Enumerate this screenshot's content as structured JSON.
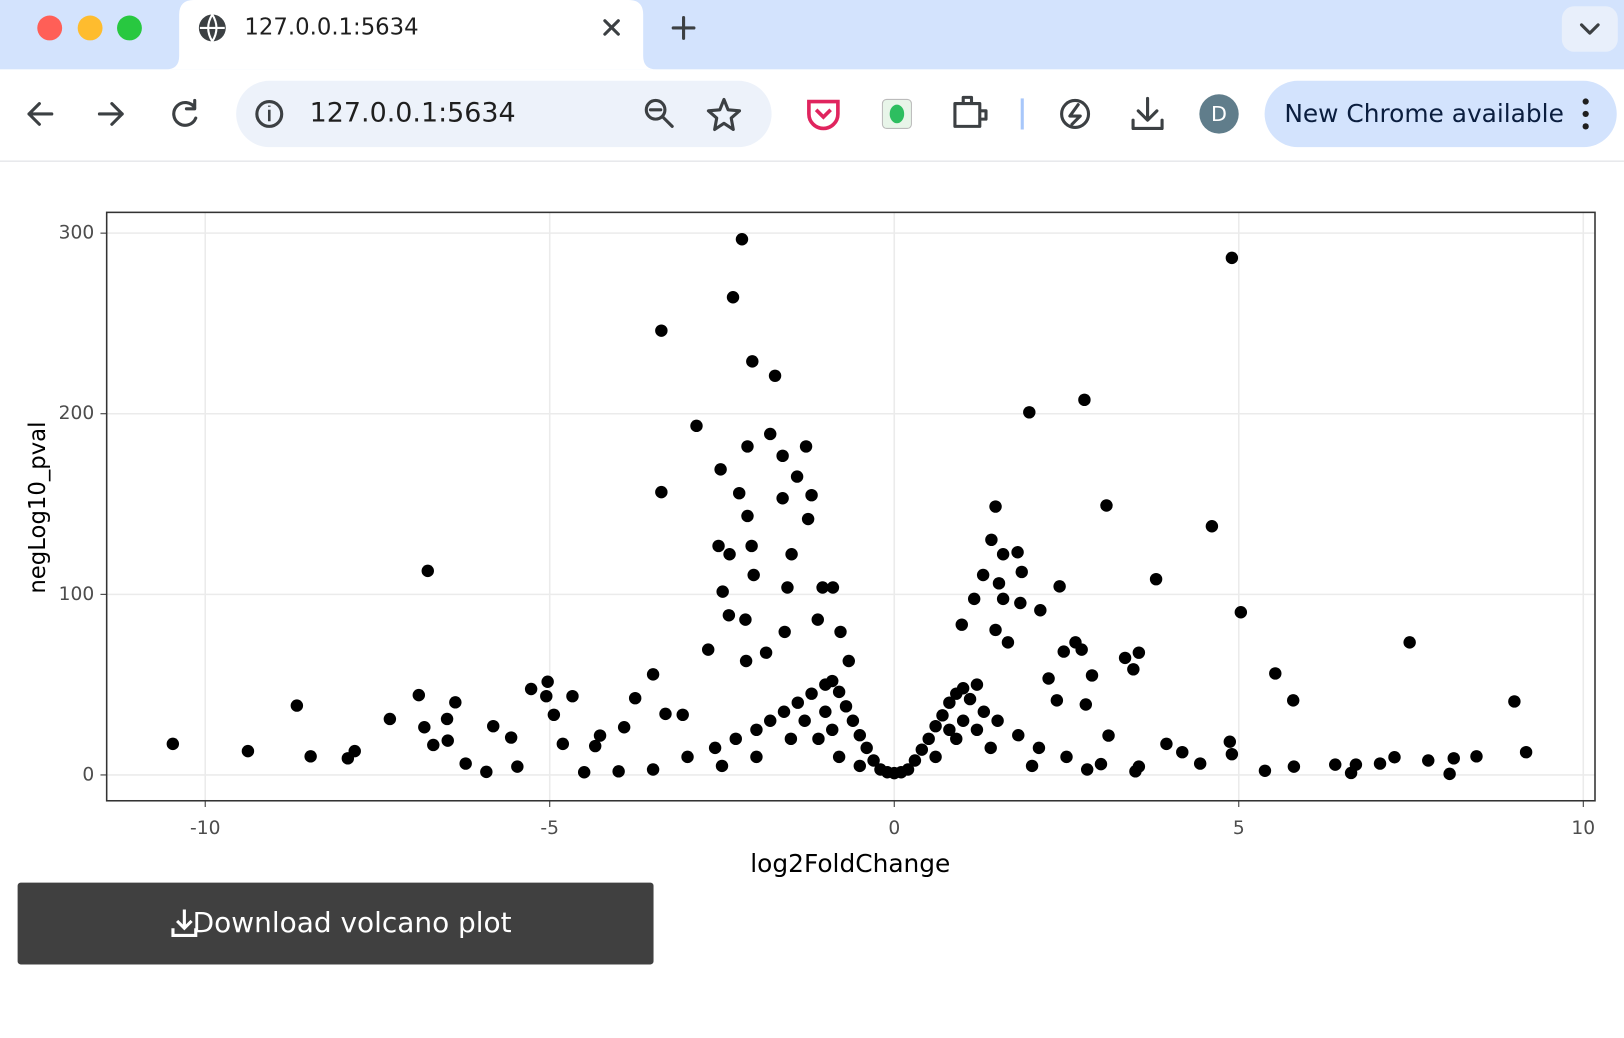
{
  "browser": {
    "tab_title": "127.0.0.1:5634",
    "address": "127.0.0.1:5634",
    "avatar": "D",
    "update_button": "New Chrome available"
  },
  "chart_data": {
    "type": "scatter",
    "x_label": "log2FoldChange",
    "y_label": "negLog10_pval",
    "color": "#000000",
    "grid": true,
    "xlim": [
      -11.43,
      10.17
    ],
    "ylim": [
      -14.3,
      311.5
    ],
    "xticks": [
      -10,
      -5,
      0,
      5,
      10
    ],
    "yticks": [
      0,
      100,
      200,
      300
    ],
    "x": [
      -10.47,
      -9.38,
      -8.67,
      -8.47,
      -7.93,
      -7.83,
      -7.32,
      -6.9,
      -6.77,
      -6.82,
      -6.49,
      -6.37,
      -6.69,
      -6.48,
      -5.82,
      -5.56,
      -5.27,
      -5.03,
      -5.05,
      -4.94,
      -4.67,
      -4.81,
      -3.5,
      -3.76,
      -3.38,
      -3.38,
      -2.87,
      -2.34,
      -2.21,
      -2.06,
      -1.73,
      -1.8,
      -2.13,
      -1.28,
      -1.62,
      -2.52,
      -2.25,
      -1.41,
      -1.2,
      -1.62,
      -2.13,
      -1.25,
      -1.49,
      -2.55,
      -2.39,
      -2.07,
      -2.04,
      -2.49,
      -1.55,
      -1.04,
      -0.89,
      -2.4,
      -2.16,
      -2.7,
      -2.15,
      -1.86,
      -1.59,
      -1.11,
      -0.78,
      -0.66,
      -3.07,
      -3.32,
      -3.92,
      -4.27,
      -4.34,
      -5.47,
      -5.92,
      -6.22,
      4.9,
      2.76,
      1.96,
      3.08,
      1.47,
      4.61,
      1.41,
      1.79,
      1.58,
      1.29,
      1.85,
      3.8,
      1.52,
      2.4,
      1.58,
      1.83,
      2.12,
      5.03,
      1.16,
      0.98,
      1.47,
      1.65,
      2.63,
      2.46,
      2.72,
      3.55,
      3.35,
      3.47,
      2.87,
      2.24,
      5.53,
      7.48,
      5.79,
      9.0,
      2.78,
      2.36,
      3.11,
      3.95,
      4.18,
      4.87,
      4.9,
      9.17,
      8.45,
      8.12,
      8.06,
      7.75,
      7.26,
      7.05,
      6.7,
      6.4,
      6.63,
      5.8,
      5.38,
      4.44,
      3.55,
      -0.2,
      -0.3,
      -0.4,
      -0.5,
      -0.6,
      -0.7,
      -0.8,
      -0.9,
      -1.0,
      -1.2,
      -1.4,
      -1.6,
      -1.8,
      -2.0,
      -2.3,
      -2.6,
      -3.0,
      -0.5,
      -0.8,
      -1.1,
      -1.3,
      -1.0,
      -0.9,
      -1.5,
      -2.0,
      -2.5,
      -3.5,
      -4.0,
      -4.5,
      0.2,
      0.3,
      0.4,
      0.5,
      0.6,
      0.7,
      0.8,
      0.9,
      1.0,
      1.1,
      1.3,
      1.5,
      1.8,
      2.1,
      2.5,
      3.0,
      0.6,
      0.9,
      1.2,
      1.4,
      2.0,
      2.8,
      3.5,
      1.0,
      1.2,
      0.8,
      0.0,
      -0.1,
      0.1
    ],
    "values": [
      17.2,
      13.2,
      38.4,
      10.3,
      9.2,
      13.2,
      31,
      44.2,
      113,
      26.4,
      31,
      40.2,
      16.6,
      19,
      27,
      20.7,
      47.6,
      51.6,
      43.6,
      33.3,
      43.6,
      17.2,
      55.7,
      42.5,
      246,
      156.6,
      193.3,
      264.5,
      296.6,
      229,
      221,
      188.8,
      181.9,
      181.9,
      176.7,
      169.2,
      156,
      165.2,
      154.9,
      153.2,
      143.4,
      141.7,
      122.2,
      126.8,
      122.2,
      126.8,
      110.7,
      101.5,
      103.8,
      103.8,
      103.8,
      88.4,
      86,
      69.4,
      63.1,
      67.7,
      79.2,
      86,
      79.2,
      63.1,
      33.3,
      33.8,
      26.4,
      21.8,
      16,
      4.6,
      1.7,
      6.3,
      286.3,
      207.7,
      200.8,
      149.2,
      148.6,
      137.7,
      130.2,
      123.3,
      122.2,
      110.7,
      112.4,
      108.4,
      106.1,
      104.4,
      97.5,
      95.2,
      91.2,
      90.1,
      97.5,
      83.2,
      80.3,
      73.4,
      73.4,
      68.3,
      69.4,
      67.7,
      64.8,
      58.5,
      55.1,
      53.4,
      56.2,
      73.4,
      41.3,
      40.7,
      39,
      41.3,
      21.8,
      17.2,
      12.6,
      18.4,
      11.5,
      12.6,
      10.3,
      9.2,
      0.6,
      8,
      9.8,
      6.3,
      5.7,
      5.7,
      1.1,
      4.6,
      2.3,
      6.3,
      4.6,
      3,
      8,
      15,
      22,
      30,
      38,
      46,
      52,
      50,
      45,
      40,
      35,
      30,
      25,
      20,
      15,
      10,
      5,
      10,
      20,
      30,
      35,
      25,
      20,
      10,
      5,
      3,
      2,
      1.5,
      3,
      8,
      14,
      20,
      27,
      33,
      40,
      45,
      48,
      42,
      35,
      30,
      22,
      15,
      10,
      6,
      10,
      20,
      25,
      15,
      5,
      3,
      2,
      30,
      50,
      25,
      1,
      1.5,
      1.5
    ]
  },
  "button": {
    "label": "Download volcano plot"
  }
}
